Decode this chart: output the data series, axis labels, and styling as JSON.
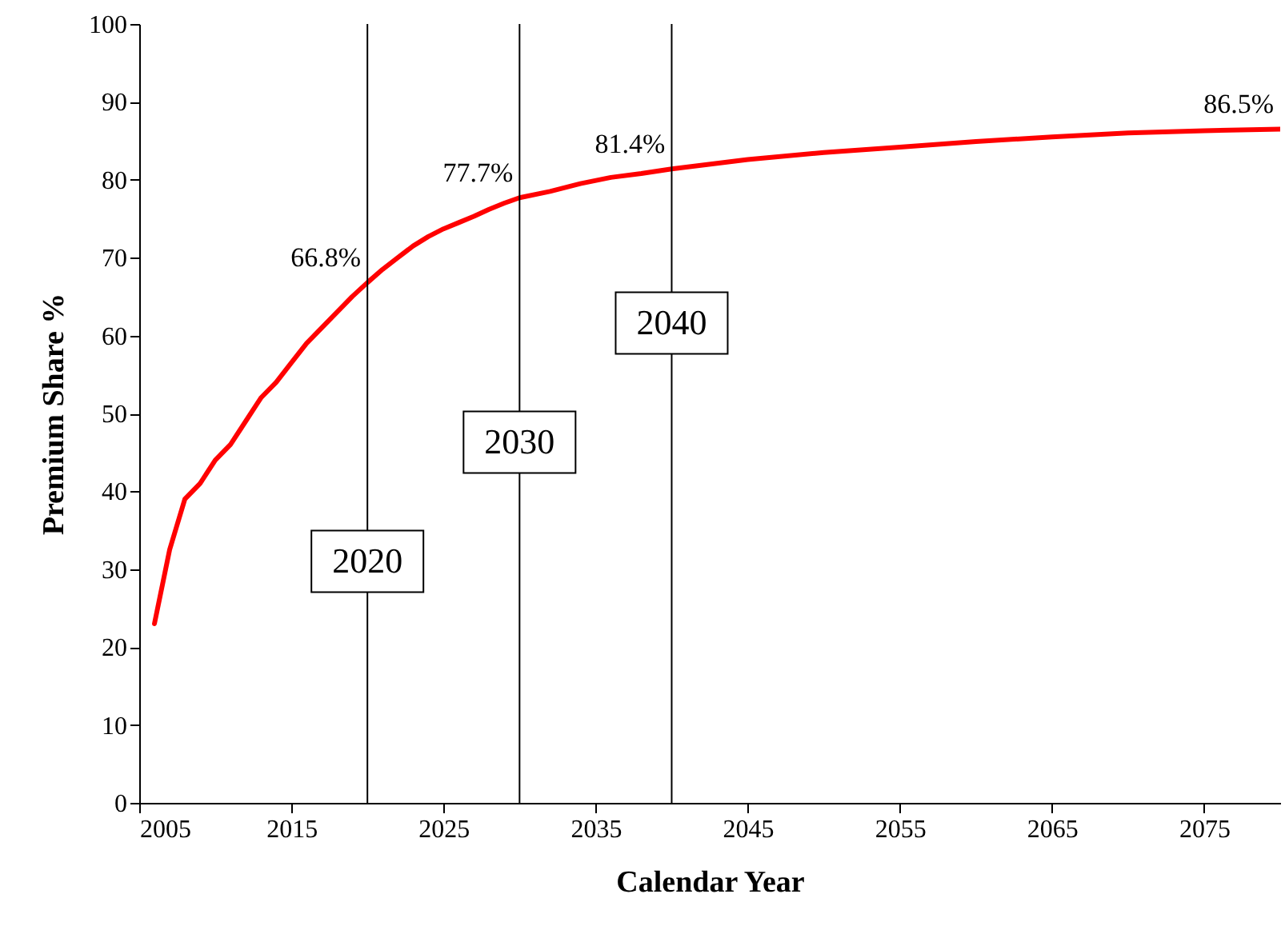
{
  "chart_data": {
    "type": "line",
    "xlabel": "Calendar Year",
    "ylabel": "Premium Share %",
    "x": [
      2006,
      2007,
      2008,
      2009,
      2010,
      2011,
      2012,
      2013,
      2014,
      2015,
      2016,
      2017,
      2018,
      2019,
      2020,
      2021,
      2022,
      2023,
      2024,
      2025,
      2026,
      2027,
      2028,
      2029,
      2030,
      2032,
      2034,
      2036,
      2038,
      2040,
      2045,
      2050,
      2055,
      2060,
      2065,
      2070,
      2075,
      2080
    ],
    "series": [
      {
        "color": "#ff0000",
        "values": [
          23,
          32.5,
          39,
          41,
          44,
          46,
          49,
          52,
          54,
          56.5,
          59,
          61,
          63,
          65,
          66.8,
          68.5,
          70,
          71.5,
          72.7,
          73.7,
          74.5,
          75.3,
          76.2,
          77,
          77.7,
          78.5,
          79.5,
          80.3,
          80.8,
          81.4,
          82.6,
          83.5,
          84.2,
          84.9,
          85.5,
          86,
          86.3,
          86.5
        ]
      }
    ],
    "xlim": [
      2005,
      2080
    ],
    "xticks": [
      2005,
      2015,
      2025,
      2035,
      2045,
      2055,
      2065,
      2075
    ],
    "ylim": [
      0,
      100
    ],
    "yticks": [
      0,
      10,
      20,
      30,
      40,
      50,
      60,
      70,
      80,
      90,
      100
    ],
    "grid": false,
    "marker": "none",
    "line_style": "solid",
    "ref_lines": [
      {
        "axis": "x",
        "value": 2020,
        "label": "2020",
        "color": "#000000"
      },
      {
        "axis": "x",
        "value": 2030,
        "label": "2030",
        "color": "#000000"
      },
      {
        "axis": "x",
        "value": 2040,
        "label": "2040",
        "color": "#000000"
      }
    ],
    "annotations": [
      {
        "text": "66.8%",
        "x": 2020,
        "y": 66.8
      },
      {
        "text": "77.7%",
        "x": 2030,
        "y": 77.7
      },
      {
        "text": "81.4%",
        "x": 2040,
        "y": 81.4
      },
      {
        "text": "86.5%",
        "x": 2080,
        "y": 86.5
      }
    ]
  }
}
